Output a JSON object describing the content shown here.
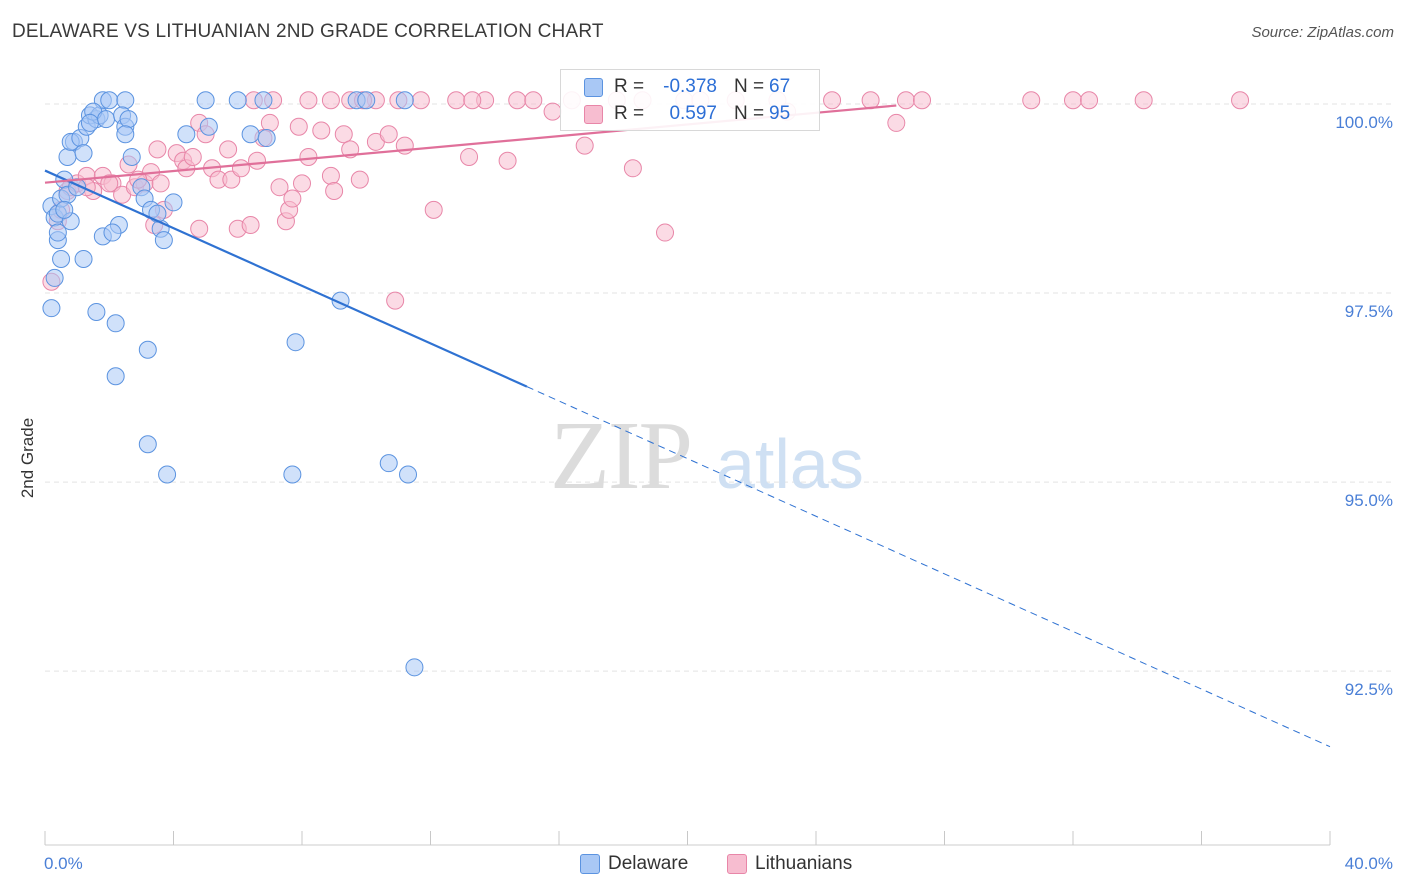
{
  "title": "DELAWARE VS LITHUANIAN 2ND GRADE CORRELATION CHART",
  "source": "Source: ZipAtlas.com",
  "watermark": {
    "zip": "ZIP",
    "atlas": "atlas"
  },
  "legend": {
    "rows": [
      {
        "r_label": "R =",
        "r_value": "-0.378",
        "n_label": "N =",
        "n_value": "67"
      },
      {
        "r_label": "R =",
        "r_value": "0.597",
        "n_label": "N =",
        "n_value": "95"
      }
    ],
    "bottom": [
      {
        "label": "Delaware"
      },
      {
        "label": "Lithuanians"
      }
    ]
  },
  "colors": {
    "blue_fill": "#a9c8f5",
    "blue_stroke": "#5b93e0",
    "blue_line": "#2f72d2",
    "pink_fill": "#f7bdd0",
    "pink_stroke": "#e886a8",
    "pink_line": "#e0709a",
    "grid": "#e3e3e3",
    "axis_label": "#4a7fd6"
  },
  "chart_data": {
    "type": "scatter",
    "title": "DELAWARE VS LITHUANIAN 2ND GRADE CORRELATION CHART",
    "xlabel": "",
    "ylabel": "2nd Grade",
    "xlim": [
      0,
      40
    ],
    "ylim": [
      90.2,
      100.45
    ],
    "x_tick_labels": [
      "0.0%",
      "40.0%"
    ],
    "y_ticks": [
      100.0,
      97.5,
      95.0,
      92.5
    ],
    "y_tick_labels": [
      "100.0%",
      "97.5%",
      "95.0%",
      "92.5%"
    ],
    "series": [
      {
        "name": "Delaware",
        "r": -0.378,
        "n": 67,
        "trend": {
          "x0": 0,
          "y0": 99.12,
          "x1": 40,
          "y1": 91.5,
          "solid_until_x": 15
        },
        "points": [
          [
            0.2,
            98.65
          ],
          [
            0.3,
            98.5
          ],
          [
            0.4,
            98.55
          ],
          [
            0.5,
            98.75
          ],
          [
            0.5,
            97.95
          ],
          [
            0.4,
            98.2
          ],
          [
            0.3,
            97.7
          ],
          [
            0.2,
            97.3
          ],
          [
            0.6,
            99.0
          ],
          [
            0.7,
            98.8
          ],
          [
            0.7,
            99.3
          ],
          [
            0.9,
            99.5
          ],
          [
            0.8,
            99.5
          ],
          [
            1.1,
            99.55
          ],
          [
            1.2,
            99.35
          ],
          [
            1.3,
            99.7
          ],
          [
            1.4,
            99.85
          ],
          [
            1.6,
            99.8
          ],
          [
            1.7,
            99.85
          ],
          [
            1.8,
            100.05
          ],
          [
            1.5,
            99.9
          ],
          [
            1.4,
            99.75
          ],
          [
            1.9,
            99.8
          ],
          [
            2.0,
            100.05
          ],
          [
            2.5,
            100.05
          ],
          [
            2.4,
            99.85
          ],
          [
            2.5,
            99.7
          ],
          [
            2.6,
            99.8
          ],
          [
            2.7,
            99.3
          ],
          [
            2.5,
            99.6
          ],
          [
            3.0,
            98.9
          ],
          [
            3.1,
            98.75
          ],
          [
            3.3,
            98.6
          ],
          [
            3.6,
            98.35
          ],
          [
            3.5,
            98.55
          ],
          [
            3.7,
            98.2
          ],
          [
            4.0,
            98.7
          ],
          [
            5.0,
            100.05
          ],
          [
            6.0,
            100.05
          ],
          [
            6.4,
            99.6
          ],
          [
            6.8,
            100.05
          ],
          [
            6.9,
            99.55
          ],
          [
            5.1,
            99.7
          ],
          [
            1.8,
            98.25
          ],
          [
            2.3,
            98.4
          ],
          [
            1.2,
            97.95
          ],
          [
            1.6,
            97.25
          ],
          [
            2.2,
            97.1
          ],
          [
            3.2,
            96.75
          ],
          [
            2.2,
            96.4
          ],
          [
            3.2,
            95.5
          ],
          [
            3.8,
            95.1
          ],
          [
            7.7,
            95.1
          ],
          [
            9.2,
            97.4
          ],
          [
            7.8,
            96.85
          ],
          [
            10.7,
            95.25
          ],
          [
            11.3,
            95.1
          ],
          [
            11.5,
            92.55
          ],
          [
            9.7,
            100.05
          ],
          [
            10.0,
            100.05
          ],
          [
            11.2,
            100.05
          ],
          [
            0.8,
            98.45
          ],
          [
            0.6,
            98.6
          ],
          [
            1.0,
            98.9
          ],
          [
            0.4,
            98.3
          ],
          [
            4.4,
            99.6
          ],
          [
            2.1,
            98.3
          ]
        ]
      },
      {
        "name": "Lithuanians",
        "r": 0.597,
        "n": 95,
        "trend": {
          "x0": 0,
          "y0": 98.96,
          "x1": 26.5,
          "y1": 99.98
        },
        "points": [
          [
            0.2,
            97.65
          ],
          [
            0.4,
            98.45
          ],
          [
            0.5,
            98.6
          ],
          [
            0.7,
            98.85
          ],
          [
            0.8,
            98.9
          ],
          [
            1.0,
            98.95
          ],
          [
            1.3,
            99.05
          ],
          [
            1.5,
            98.85
          ],
          [
            1.8,
            99.05
          ],
          [
            2.1,
            98.95
          ],
          [
            2.4,
            98.8
          ],
          [
            2.6,
            99.2
          ],
          [
            2.8,
            98.9
          ],
          [
            3.1,
            98.95
          ],
          [
            3.3,
            99.1
          ],
          [
            3.6,
            98.95
          ],
          [
            3.7,
            98.6
          ],
          [
            3.4,
            98.4
          ],
          [
            3.5,
            99.4
          ],
          [
            4.1,
            99.35
          ],
          [
            4.3,
            99.25
          ],
          [
            4.4,
            99.15
          ],
          [
            4.6,
            99.3
          ],
          [
            4.8,
            99.75
          ],
          [
            5.0,
            99.6
          ],
          [
            5.2,
            99.15
          ],
          [
            5.4,
            99.0
          ],
          [
            5.7,
            99.4
          ],
          [
            5.8,
            99.0
          ],
          [
            6.0,
            98.35
          ],
          [
            6.1,
            99.15
          ],
          [
            6.4,
            98.4
          ],
          [
            6.6,
            99.25
          ],
          [
            6.8,
            99.55
          ],
          [
            7.0,
            99.75
          ],
          [
            7.3,
            98.9
          ],
          [
            7.5,
            98.45
          ],
          [
            7.6,
            98.6
          ],
          [
            7.7,
            98.75
          ],
          [
            7.9,
            99.7
          ],
          [
            8.0,
            98.95
          ],
          [
            8.2,
            99.3
          ],
          [
            8.6,
            99.65
          ],
          [
            8.9,
            99.05
          ],
          [
            9.0,
            98.85
          ],
          [
            9.3,
            99.6
          ],
          [
            9.5,
            99.4
          ],
          [
            9.8,
            99.0
          ],
          [
            10.3,
            99.5
          ],
          [
            10.7,
            99.6
          ],
          [
            10.9,
            97.4
          ],
          [
            11.2,
            99.45
          ],
          [
            12.1,
            98.6
          ],
          [
            13.2,
            99.3
          ],
          [
            14.4,
            99.25
          ],
          [
            15.8,
            99.9
          ],
          [
            16.8,
            99.45
          ],
          [
            18.3,
            99.15
          ],
          [
            19.3,
            98.3
          ],
          [
            23.1,
            99.9
          ],
          [
            26.5,
            99.75
          ],
          [
            1.3,
            98.9
          ],
          [
            2.0,
            98.95
          ],
          [
            2.9,
            99.0
          ],
          [
            4.8,
            98.35
          ],
          [
            7.1,
            100.05
          ],
          [
            8.2,
            100.05
          ],
          [
            9.5,
            100.05
          ],
          [
            10.3,
            100.05
          ],
          [
            11.0,
            100.05
          ],
          [
            11.7,
            100.05
          ],
          [
            12.8,
            100.05
          ],
          [
            13.7,
            100.05
          ],
          [
            14.7,
            100.05
          ],
          [
            15.2,
            100.05
          ],
          [
            16.4,
            100.05
          ],
          [
            17.8,
            100.05
          ],
          [
            18.6,
            100.05
          ],
          [
            19.9,
            100.05
          ],
          [
            20.4,
            100.05
          ],
          [
            21.5,
            100.05
          ],
          [
            22.8,
            100.05
          ],
          [
            24.5,
            100.05
          ],
          [
            25.7,
            100.05
          ],
          [
            26.8,
            100.05
          ],
          [
            27.3,
            100.05
          ],
          [
            30.7,
            100.05
          ],
          [
            32.0,
            100.05
          ],
          [
            32.5,
            100.05
          ],
          [
            34.2,
            100.05
          ],
          [
            37.2,
            100.05
          ],
          [
            6.5,
            100.05
          ],
          [
            8.9,
            100.05
          ],
          [
            9.9,
            100.05
          ],
          [
            13.3,
            100.05
          ]
        ]
      }
    ]
  }
}
